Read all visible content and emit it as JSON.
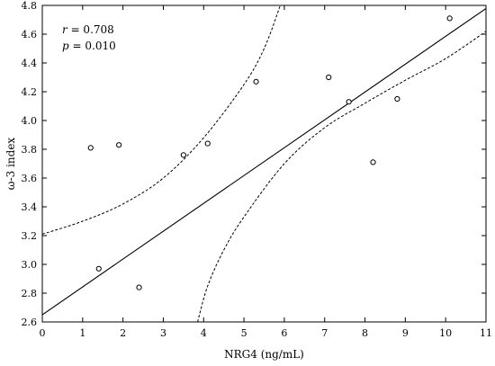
{
  "chart_data": {
    "type": "scatter",
    "xlabel": "NRG4 (ng/mL)",
    "ylabel": "ω-3 index",
    "xlim": [
      0,
      11
    ],
    "ylim": [
      2.6,
      4.8
    ],
    "x_ticks": [
      0,
      1,
      2,
      3,
      4,
      5,
      6,
      7,
      8,
      9,
      10,
      11
    ],
    "y_ticks": [
      2.6,
      2.8,
      3.0,
      3.2,
      3.4,
      3.6,
      3.8,
      4.0,
      4.2,
      4.4,
      4.6,
      4.8
    ],
    "y_tick_labels": [
      "2.6",
      "2.8",
      "3.0",
      "3.2",
      "3.4",
      "3.6",
      "3.8",
      "4.0",
      "4.2",
      "4.4",
      "4.6",
      "4.8"
    ],
    "points": [
      {
        "x": 1.2,
        "y": 3.81
      },
      {
        "x": 1.4,
        "y": 2.97
      },
      {
        "x": 1.9,
        "y": 3.83
      },
      {
        "x": 2.4,
        "y": 2.84
      },
      {
        "x": 3.5,
        "y": 3.76
      },
      {
        "x": 4.1,
        "y": 3.84
      },
      {
        "x": 5.3,
        "y": 4.27
      },
      {
        "x": 7.1,
        "y": 4.3
      },
      {
        "x": 7.6,
        "y": 4.13
      },
      {
        "x": 8.2,
        "y": 3.71
      },
      {
        "x": 8.8,
        "y": 4.15
      },
      {
        "x": 10.1,
        "y": 4.71
      }
    ],
    "regression": {
      "intercept": 2.65,
      "slope": 0.1935
    },
    "confidence_upper": [
      {
        "x": 0,
        "y": 3.21
      },
      {
        "x": 1,
        "y": 3.3
      },
      {
        "x": 2,
        "y": 3.42
      },
      {
        "x": 3,
        "y": 3.6
      },
      {
        "x": 4,
        "y": 3.88
      },
      {
        "x": 5,
        "y": 4.25
      },
      {
        "x": 5.5,
        "y": 4.5
      },
      {
        "x": 5.9,
        "y": 4.8
      }
    ],
    "confidence_lower": [
      {
        "x": 3.85,
        "y": 2.6
      },
      {
        "x": 4.1,
        "y": 2.85
      },
      {
        "x": 4.5,
        "y": 3.1
      },
      {
        "x": 5,
        "y": 3.33
      },
      {
        "x": 6,
        "y": 3.7
      },
      {
        "x": 7,
        "y": 3.95
      },
      {
        "x": 8,
        "y": 4.12
      },
      {
        "x": 9,
        "y": 4.28
      },
      {
        "x": 10,
        "y": 4.43
      },
      {
        "x": 11,
        "y": 4.62
      }
    ],
    "stats": {
      "r_label": "r",
      "r_value": " = 0.708",
      "p_label": "p",
      "p_value": " = 0.010"
    }
  }
}
